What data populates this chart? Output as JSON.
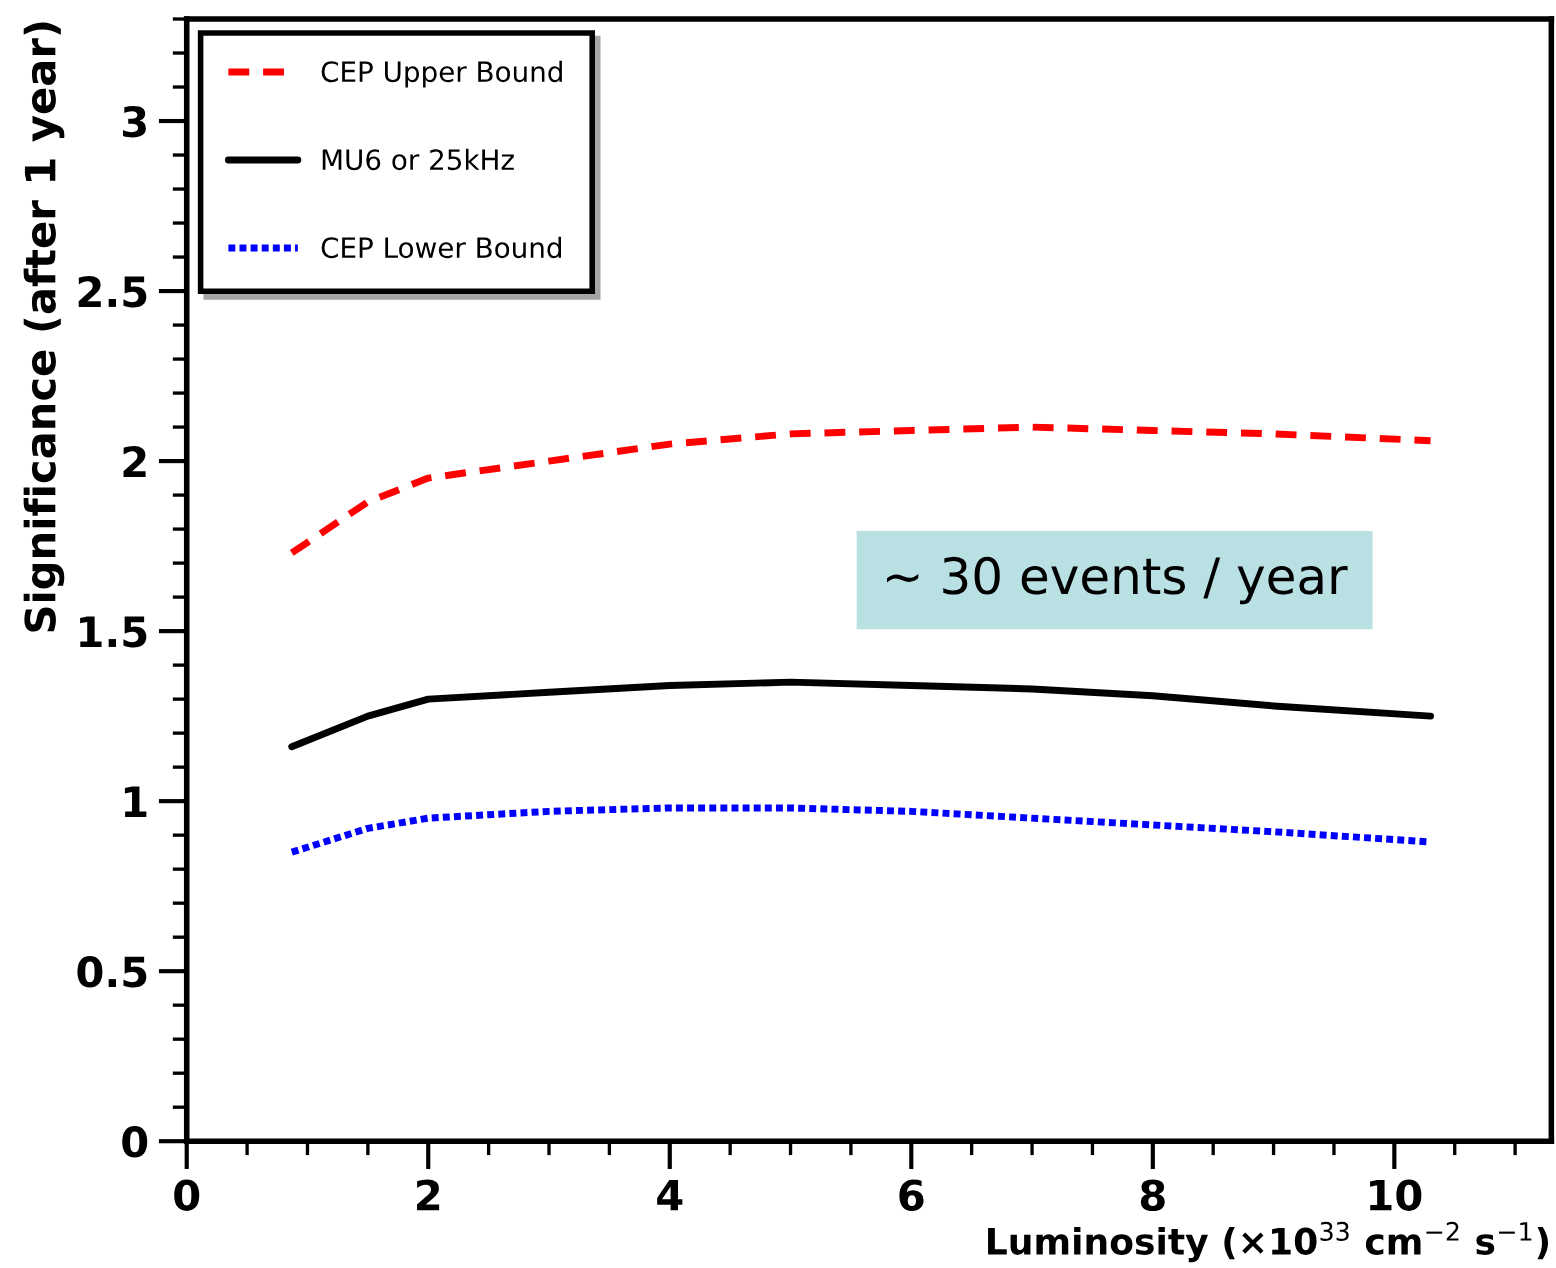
{
  "chart_data": {
    "type": "line",
    "xlabel": "Luminosity (×10$^{33}$ cm$^{−2}$ s$^{−1}$)",
    "ylabel": "Significance (after 1 year)",
    "xlim": [
      0,
      11.3
    ],
    "ylim": [
      0,
      3.3
    ],
    "xticks": [
      0,
      2,
      4,
      6,
      8,
      10
    ],
    "yticks": [
      0,
      0.5,
      1,
      1.5,
      2,
      2.5,
      3
    ],
    "x": [
      0.87,
      1.5,
      2,
      3,
      4,
      5,
      6,
      7,
      8,
      9,
      10.3
    ],
    "series": [
      {
        "name": "CEP Upper Bound",
        "color": "#ff0000",
        "line_style": "dashed",
        "values": [
          1.73,
          1.88,
          1.95,
          2.0,
          2.05,
          2.08,
          2.09,
          2.1,
          2.09,
          2.08,
          2.06
        ]
      },
      {
        "name": "MU6 or 25kHz",
        "color": "#000000",
        "line_style": "solid",
        "values": [
          1.16,
          1.25,
          1.3,
          1.32,
          1.34,
          1.35,
          1.34,
          1.33,
          1.31,
          1.28,
          1.25
        ]
      },
      {
        "name": "CEP Lower Bound",
        "color": "#0000ff",
        "line_style": "dotted",
        "values": [
          0.85,
          0.92,
          0.95,
          0.97,
          0.98,
          0.98,
          0.97,
          0.95,
          0.93,
          0.91,
          0.88
        ]
      }
    ],
    "annotations": [
      "~ 30 events / year"
    ],
    "legend": "top left",
    "grid": false,
    "marker": "none"
  }
}
